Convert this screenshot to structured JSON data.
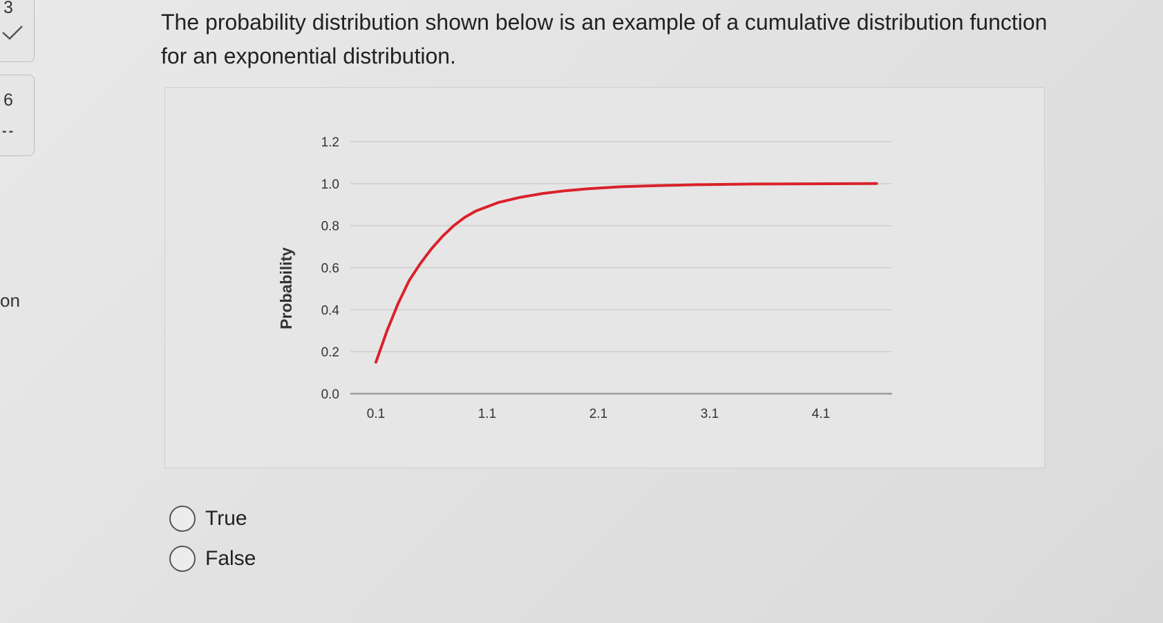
{
  "nav": {
    "q3_number": "3",
    "q6_number": "6",
    "q6_status": "--",
    "side_text": "on"
  },
  "question": {
    "text": "The probability distribution shown below is an example of a cumulative distribution function for an exponential distribution."
  },
  "options": [
    {
      "label": "True"
    },
    {
      "label": "False"
    }
  ],
  "colors": {
    "curve": "#d9222a",
    "gridline": "#cfcfcf",
    "axis": "#9a9a9a"
  },
  "chart_data": {
    "type": "line",
    "title": "",
    "xlabel": "",
    "ylabel": "Probability",
    "x_ticks": [
      "0.1",
      "1.1",
      "2.1",
      "3.1",
      "4.1"
    ],
    "y_ticks": [
      "0.0",
      "0.2",
      "0.4",
      "0.6",
      "0.8",
      "1.0",
      "1.2"
    ],
    "xlim": [
      0.1,
      4.6
    ],
    "ylim": [
      0,
      1.2
    ],
    "grid": true,
    "series": [
      {
        "x": [
          0.1,
          0.2,
          0.3,
          0.4,
          0.5,
          0.6,
          0.7,
          0.8,
          0.9,
          1.0,
          1.2,
          1.4,
          1.6,
          1.8,
          2.0,
          2.3,
          2.6,
          3.0,
          3.5,
          4.0,
          4.6
        ],
        "values": [
          0.15,
          0.3,
          0.43,
          0.54,
          0.62,
          0.69,
          0.75,
          0.8,
          0.84,
          0.87,
          0.91,
          0.935,
          0.953,
          0.966,
          0.975,
          0.985,
          0.99,
          0.995,
          0.998,
          0.999,
          1.0
        ]
      }
    ]
  }
}
